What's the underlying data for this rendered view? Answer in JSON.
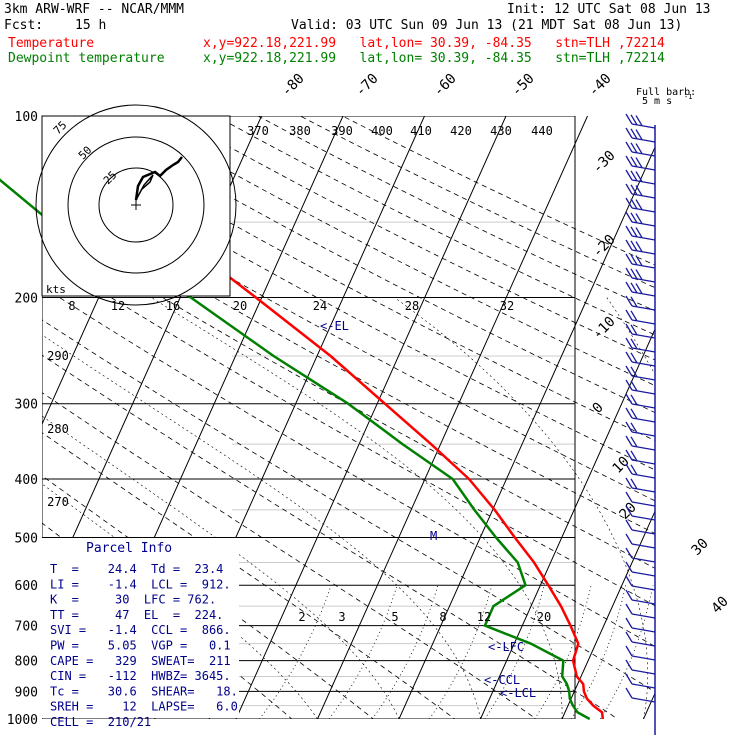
{
  "header": {
    "model": "3km ARW-WRF -- NCAR/MMM",
    "init": "Init: 12 UTC Sat 08 Jun 13",
    "fcst_label": "Fcst:",
    "fcst_value": "15 h",
    "valid": "Valid: 03 UTC Sun 09 Jun 13 (21 MDT Sat 08 Jun 13)",
    "temp_label": "Temperature",
    "dew_label": "Dewpoint temperature",
    "temp_info": "x,y=922.18,221.99   lat,lon= 30.39, -84.35   stn=TLH ,72214",
    "dew_info": "x,y=922.18,221.99   lat,lon= 30.39, -84.35   stn=TLH ,72214"
  },
  "colors": {
    "temperature": "#ff0000",
    "dewpoint": "#008000",
    "annotations": "#00008b",
    "grid": "#000000"
  },
  "barb_legend": {
    "line1": "Full barb:",
    "line2": "5 m s",
    "exp": "-1"
  },
  "parcel_info": {
    "title": "Parcel Info",
    "rows": [
      "T  =    24.4  Td =  23.4",
      "LI =    -1.4  LCL =  912.",
      "K  =     30  LFC = 762.",
      "TT =     47  EL  =  224.",
      "SVI =   -1.4  CCL =  866.",
      "PW =    5.05  VGP =   0.1",
      "CAPE =   329  SWEAT=  211",
      "CIN =   -112  HWBZ= 3645.",
      "Tc =    30.6  SHEAR=   18.",
      "SREH =    12  LAPSE=   6.0",
      "CELL =  210/21"
    ]
  },
  "hodograph": {
    "units": "kts",
    "rings": [
      "25",
      "50",
      "75"
    ]
  },
  "chart_data": {
    "type": "line",
    "title": "",
    "xlabel": "",
    "ylabel": "",
    "y_scale": "log-pressure",
    "ylim": [
      1000,
      100
    ],
    "pressure_labels": [
      "100",
      "200",
      "300",
      "400",
      "500",
      "600",
      "700",
      "800",
      "900",
      "1000"
    ],
    "isotherm_labels": [
      "-80",
      "-70",
      "-60",
      "-50",
      "-40",
      "-30",
      "-20",
      "-10",
      "0",
      "10",
      "20",
      "30",
      "40"
    ],
    "dry_adiabat_labels": [
      "370",
      "380",
      "390",
      "400",
      "410",
      "420",
      "430",
      "440",
      "290",
      "280",
      "270"
    ],
    "mixing_ratio_labels": [
      "2",
      "3",
      "5",
      "8",
      "12",
      "20"
    ],
    "tc_labels": [
      "8",
      "12",
      "16",
      "20",
      "24",
      "28",
      "32"
    ],
    "annotations": [
      "<-EL",
      "<-LFC",
      "<-CCL",
      "<-LCL",
      "M"
    ],
    "series": [
      {
        "name": "Temperature",
        "points": [
          [
            1000,
            25.0
          ],
          [
            975,
            24.0
          ],
          [
            950,
            22.0
          ],
          [
            925,
            20.3
          ],
          [
            900,
            19.0
          ],
          [
            875,
            18.0
          ],
          [
            850,
            16.3
          ],
          [
            800,
            14.0
          ],
          [
            750,
            12.8
          ],
          [
            700,
            10.0
          ],
          [
            650,
            7.0
          ],
          [
            600,
            3.6
          ],
          [
            550,
            0.0
          ],
          [
            500,
            -4.2
          ],
          [
            450,
            -8.5
          ],
          [
            400,
            -13.5
          ],
          [
            350,
            -20.0
          ],
          [
            300,
            -27.5
          ],
          [
            250,
            -36.0
          ],
          [
            200,
            -47.0
          ],
          [
            175,
            -53.5
          ],
          [
            150,
            -58.5
          ],
          [
            125,
            -65.0
          ],
          [
            100,
            -73.0
          ]
        ]
      },
      {
        "name": "Dewpoint temperature",
        "points": [
          [
            1000,
            23.4
          ],
          [
            975,
            21.0
          ],
          [
            950,
            19.5
          ],
          [
            925,
            18.2
          ],
          [
            900,
            17.2
          ],
          [
            875,
            16.0
          ],
          [
            850,
            14.5
          ],
          [
            800,
            12.8
          ],
          [
            750,
            7.0
          ],
          [
            700,
            -0.5
          ],
          [
            650,
            -1.3
          ],
          [
            600,
            0.8
          ],
          [
            550,
            -2.0
          ],
          [
            500,
            -6.5
          ],
          [
            450,
            -11.0
          ],
          [
            400,
            -15.5
          ],
          [
            350,
            -23.5
          ],
          [
            300,
            -32.0
          ],
          [
            250,
            -43.0
          ],
          [
            200,
            -55.0
          ],
          [
            175,
            -64.0
          ],
          [
            150,
            -74.0
          ],
          [
            125,
            -82.0
          ],
          [
            100,
            -90.0
          ]
        ]
      }
    ]
  }
}
